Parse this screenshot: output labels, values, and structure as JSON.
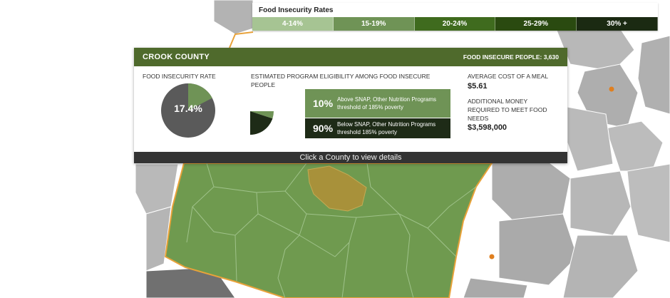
{
  "legend": {
    "title": "Food Insecurity Rates",
    "bins": [
      {
        "label": "4-14%",
        "color": "#a6c493"
      },
      {
        "label": "15-19%",
        "color": "#6f9356"
      },
      {
        "label": "20-24%",
        "color": "#3f6b1e"
      },
      {
        "label": "25-29%",
        "color": "#2a4a10"
      },
      {
        "label": "30% +",
        "color": "#1b2a12"
      }
    ]
  },
  "county": {
    "name": "CROOK COUNTY",
    "insecure_people": "FOOD INSECURE PEOPLE: 3,630",
    "rate_title": "FOOD INSECURITY RATE",
    "rate_label": "17.4%",
    "rate_value": 0.174,
    "eligibility_title": "ESTIMATED PROGRAM ELIGIBILITY AMONG FOOD INSECURE PEOPLE",
    "eligibility": [
      {
        "pct": "10%",
        "text": "Above SNAP, Other Nutrition Programs threshold of 185% poverty",
        "fraction": 0.1,
        "color": "#6f9356"
      },
      {
        "pct": "90%",
        "text": "Below SNAP, Other Nutrition Programs threshold 185% poverty",
        "fraction": 0.9,
        "color": "#1e2b17"
      }
    ],
    "meal_cost_label": "AVERAGE COST OF A MEAL",
    "meal_cost_value": "$5.61",
    "additional_label": "ADDITIONAL MONEY REQUIRED TO MEET FOOD NEEDS",
    "additional_value": "$3,598,000"
  },
  "footer": {
    "hint": "Click a County to view details"
  },
  "colors": {
    "state_fill": "#6f9a4f",
    "selected_county": "#a8913a",
    "neighbor_fill": "#b2b2b2",
    "neighbor_dark": "#6b6b6b",
    "state_border": "#e8a23a",
    "city_marker": "#e07f1f"
  }
}
